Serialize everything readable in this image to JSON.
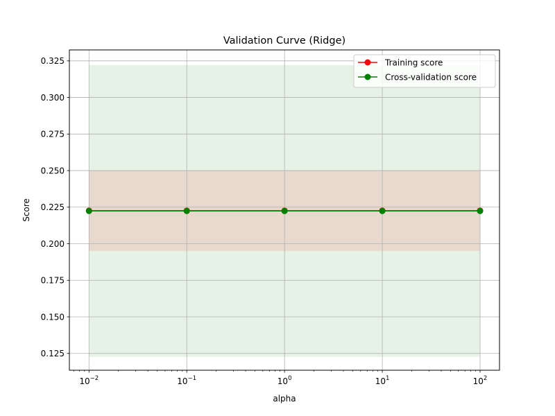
{
  "chart_data": {
    "type": "line",
    "title": "Validation Curve (Ridge)",
    "xlabel": "alpha",
    "ylabel": "Score",
    "xscale": "log",
    "x": [
      0.01,
      0.1,
      1,
      10,
      100
    ],
    "xlim": [
      0.0063,
      158
    ],
    "ylim": [
      0.1135,
      0.3325
    ],
    "xticks": [
      {
        "value": 0.01,
        "base": "10",
        "exp": "−2"
      },
      {
        "value": 0.1,
        "base": "10",
        "exp": "−1"
      },
      {
        "value": 1,
        "base": "10",
        "exp": "0"
      },
      {
        "value": 10,
        "base": "10",
        "exp": "1"
      },
      {
        "value": 100,
        "base": "10",
        "exp": "2"
      }
    ],
    "yticks": [
      0.125,
      0.15,
      0.175,
      0.2,
      0.225,
      0.25,
      0.275,
      0.3,
      0.325
    ],
    "ytick_labels": [
      "0.125",
      "0.150",
      "0.175",
      "0.200",
      "0.225",
      "0.250",
      "0.275",
      "0.300",
      "0.325"
    ],
    "grid": true,
    "legend_position": "top-right",
    "series": [
      {
        "name": "Training score",
        "color": "#ff0000",
        "values": [
          0.2226,
          0.2226,
          0.2226,
          0.2226,
          0.2226
        ],
        "band_lower": [
          0.1951,
          0.1951,
          0.1951,
          0.1951,
          0.1951
        ],
        "band_upper": [
          0.2501,
          0.2501,
          0.2501,
          0.2501,
          0.2501
        ],
        "band_color": "#ff0000"
      },
      {
        "name": "Cross-validation score",
        "color": "#008000",
        "values": [
          0.2224,
          0.2224,
          0.2224,
          0.2224,
          0.2224
        ],
        "band_lower": [
          0.1227,
          0.1227,
          0.1227,
          0.1227,
          0.1227
        ],
        "band_upper": [
          0.3221,
          0.3221,
          0.3221,
          0.3221,
          0.3221
        ],
        "band_color": "#008000"
      }
    ]
  }
}
